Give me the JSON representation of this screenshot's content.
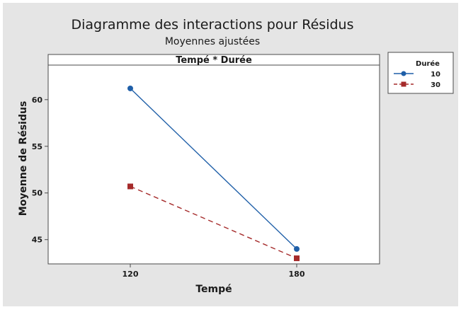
{
  "chart_data": {
    "type": "line",
    "title": "Diagramme des interactions pour Résidus",
    "subtitle": "Moyennes ajustées",
    "panel_label": "Tempé * Durée",
    "xlabel": "Tempé",
    "ylabel": "Moyenne de Résidus",
    "categories": [
      "120",
      "180"
    ],
    "yticks": [
      45,
      50,
      55,
      60
    ],
    "ylim": [
      42.4,
      63.7
    ],
    "grid": false,
    "legend": {
      "title": "Durée",
      "placement": "right"
    },
    "series": [
      {
        "name": "10",
        "values": [
          61.2,
          44.0
        ],
        "color": "#1f5fa8",
        "marker": "circle",
        "line_style": "solid"
      },
      {
        "name": "30",
        "values": [
          50.7,
          43.0
        ],
        "color": "#a52a2a",
        "marker": "square",
        "line_style": "dashed"
      }
    ],
    "colors": {
      "background": "#e5e5e5",
      "plot_background": "#ffffff",
      "axis": "#4a4a4a"
    }
  }
}
